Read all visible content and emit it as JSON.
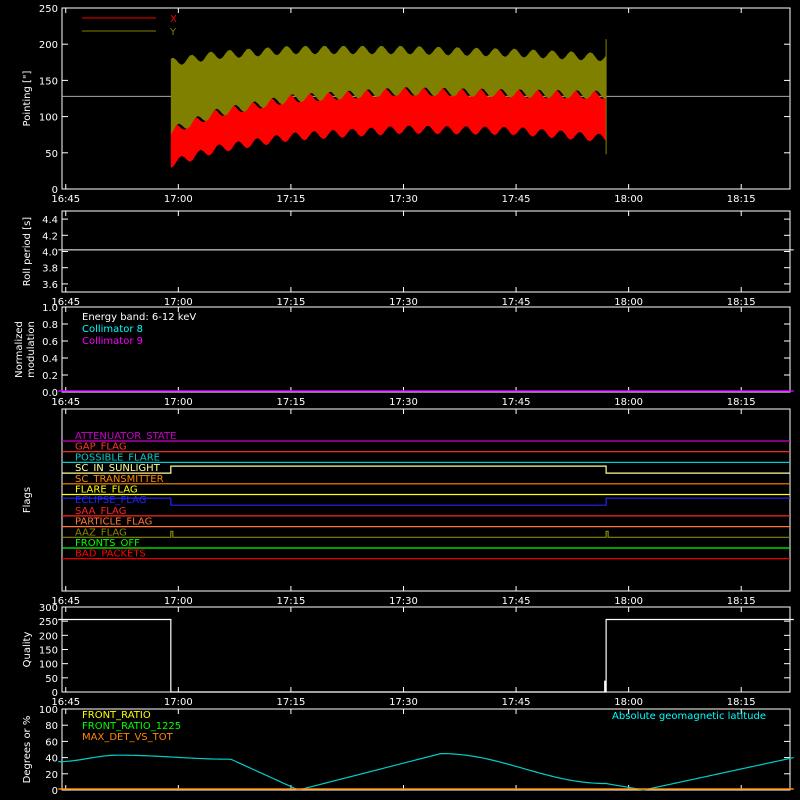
{
  "time_ticks": [
    "16:45",
    "17:00",
    "17:15",
    "17:30",
    "17:45",
    "18:00",
    "18:15"
  ],
  "chart_data": [
    {
      "id": "pointing",
      "type": "area",
      "ylabel": "Pointing [\"]",
      "ylim": [
        0,
        250
      ],
      "yticks": [
        "0",
        "50",
        "100",
        "150",
        "200",
        "250"
      ],
      "reference_line": 128,
      "legend": [
        "X",
        "Y"
      ],
      "series": [
        {
          "name": "X",
          "color": "#ff0000",
          "x": [
            "16:59",
            "17:05",
            "17:15",
            "17:30",
            "17:45",
            "17:57"
          ],
          "lower": [
            35,
            55,
            72,
            82,
            80,
            70
          ],
          "upper": [
            80,
            105,
            125,
            135,
            132,
            130
          ]
        },
        {
          "name": "Y",
          "color": "#808000",
          "x": [
            "16:59",
            "17:05",
            "17:15",
            "17:30",
            "17:45",
            "17:57"
          ],
          "lower": [
            80,
            105,
            125,
            135,
            132,
            130
          ],
          "upper": [
            175,
            185,
            192,
            192,
            188,
            182
          ]
        }
      ]
    },
    {
      "id": "roll",
      "type": "line",
      "ylabel": "Roll period [s]",
      "ylim": [
        3.5,
        4.5
      ],
      "yticks": [
        "3.6",
        "3.8",
        "4.0",
        "4.2",
        "4.4"
      ],
      "series": [
        {
          "color": "#ffffff",
          "x": [
            "16:44",
            "18:22"
          ],
          "y": [
            4.02,
            4.02
          ]
        }
      ]
    },
    {
      "id": "modulation",
      "type": "line",
      "ylabel": "Normalized modulation",
      "ylim": [
        0,
        1
      ],
      "yticks": [
        "0.0",
        "0.2",
        "0.4",
        "0.6",
        "0.8",
        "1.0"
      ],
      "annotations": [
        "Energy band: 6-12 keV",
        "Collimator 8",
        "Collimator 9"
      ],
      "annotation_colors": [
        "#ffffff",
        "#00ffff",
        "#ff00ff"
      ],
      "series": [
        {
          "name": "Collimator 9",
          "color": "#cc00ff",
          "x": [
            "16:44",
            "18:22"
          ],
          "y": [
            0.0,
            0.0
          ]
        }
      ]
    },
    {
      "id": "flags",
      "type": "line",
      "ylabel": "Flags",
      "flags": [
        {
          "name": "ATTENUATOR_STATE",
          "color": "#cc00cc",
          "on_during_pass": false
        },
        {
          "name": "GAP_FLAG",
          "color": "#ff3333",
          "on_during_pass": false
        },
        {
          "name": "POSSIBLE_FLARE",
          "color": "#00cccc",
          "on_during_pass": false
        },
        {
          "name": "SC_IN_SUNLIGHT",
          "color": "#ffff99",
          "on_during_pass": true
        },
        {
          "name": "SC_TRANSMITTER",
          "color": "#ff8800",
          "on_during_pass": false
        },
        {
          "name": "FLARE_FLAG",
          "color": "#ffff00",
          "on_during_pass": false
        },
        {
          "name": "ECLIPSE_FLAG",
          "color": "#2222ff",
          "on_during_pass": false,
          "on_outside_pass": true
        },
        {
          "name": "SAA_FLAG",
          "color": "#ff2222",
          "on_during_pass": false
        },
        {
          "name": "PARTICLE_FLAG",
          "color": "#ff7733",
          "on_during_pass": false
        },
        {
          "name": "AAZ_FLAG",
          "color": "#888800",
          "on_during_pass": false,
          "spikes": [
            "16:59",
            "17:57"
          ]
        },
        {
          "name": "FRONTS_OFF",
          "color": "#00ff00",
          "on_during_pass": false
        },
        {
          "name": "BAD_PACKETS",
          "color": "#ff0000",
          "on_during_pass": false
        }
      ],
      "pass_start": "16:59",
      "pass_end": "17:57"
    },
    {
      "id": "quality",
      "type": "line",
      "ylabel": "Quality",
      "ylim": [
        0,
        300
      ],
      "yticks": [
        "0",
        "50",
        "100",
        "150",
        "200",
        "250",
        "300"
      ],
      "series": [
        {
          "color": "#ffffff",
          "x": [
            "16:44",
            "16:59",
            "16:59",
            "17:57",
            "17:57",
            "18:22"
          ],
          "y": [
            256,
            256,
            0,
            0,
            256,
            256
          ]
        }
      ],
      "spike": {
        "x": "17:57",
        "y": 40
      }
    },
    {
      "id": "ratios",
      "type": "line",
      "ylabel": "Degrees or %",
      "ylim": [
        0,
        100
      ],
      "yticks": [
        "0",
        "20",
        "40",
        "60",
        "80",
        "100"
      ],
      "legend_left": [
        "FRONT_RATIO",
        "FRONT_RATIO_1225",
        "MAX_DET_VS_TOT"
      ],
      "legend_left_colors": [
        "#ffff00",
        "#00ff00",
        "#ff8800"
      ],
      "legend_right": "Absolute geomagnetic latitude",
      "legend_right_color": "#00ffff",
      "series": [
        {
          "name": "Absolute geomagnetic latitude",
          "color": "#00cccc",
          "x": [
            "16:44",
            "16:52",
            "17:07",
            "17:16",
            "17:35",
            "17:57",
            "18:02",
            "18:22"
          ],
          "y": [
            35,
            43,
            38,
            0,
            45,
            8,
            0,
            40
          ]
        },
        {
          "name": "MAX_DET_VS_TOT",
          "color": "#ff8800",
          "x": [
            "16:44",
            "18:22"
          ],
          "y": [
            0,
            0
          ]
        }
      ]
    }
  ]
}
